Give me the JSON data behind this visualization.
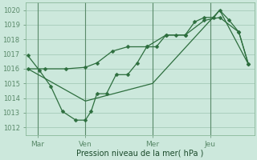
{
  "xlabel": "Pression niveau de la mer( hPa )",
  "bg_color": "#cce8dc",
  "grid_color": "#aacfbe",
  "line_color": "#2d6e3e",
  "ylim": [
    1011.5,
    1020.5
  ],
  "yticks": [
    1012,
    1013,
    1014,
    1015,
    1016,
    1017,
    1018,
    1019,
    1020
  ],
  "day_labels": [
    "Mar",
    "Ven",
    "Mer",
    "Jeu"
  ],
  "day_positions": [
    0.5,
    3.0,
    6.5,
    9.5
  ],
  "vline_positions": [
    0.5,
    3.0,
    6.5,
    9.5
  ],
  "xlim": [
    -0.1,
    11.8
  ],
  "line1_x": [
    0.0,
    0.6,
    1.2,
    1.8,
    2.5,
    3.0,
    3.3,
    3.6,
    4.1,
    4.6,
    5.2,
    5.7,
    6.2,
    6.7,
    7.2,
    7.7,
    8.2,
    8.7,
    9.2,
    9.7,
    10.0,
    10.5,
    11.0,
    11.5
  ],
  "line1_y": [
    1016.9,
    1015.9,
    1014.8,
    1013.1,
    1012.5,
    1012.5,
    1013.1,
    1014.3,
    1014.3,
    1015.6,
    1015.6,
    1016.4,
    1017.5,
    1017.5,
    1018.3,
    1018.3,
    1018.3,
    1019.2,
    1019.5,
    1019.5,
    1020.0,
    1019.3,
    1018.5,
    1016.3
  ],
  "line2_x": [
    0.0,
    0.9,
    2.0,
    3.0,
    3.6,
    4.4,
    5.2,
    6.2,
    7.2,
    8.2,
    9.2,
    10.0,
    11.0,
    11.5
  ],
  "line2_y": [
    1016.0,
    1016.0,
    1016.0,
    1016.1,
    1016.4,
    1017.2,
    1017.5,
    1017.5,
    1018.3,
    1018.3,
    1019.3,
    1019.5,
    1018.5,
    1016.3
  ],
  "line3_x": [
    0.0,
    3.0,
    6.5,
    10.0,
    11.5
  ],
  "line3_y": [
    1016.0,
    1013.8,
    1015.0,
    1020.0,
    1016.3
  ]
}
